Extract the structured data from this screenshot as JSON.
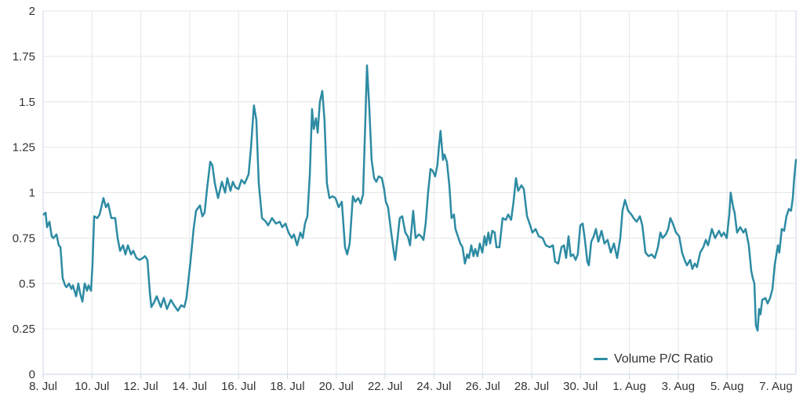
{
  "chart_data": {
    "type": "line",
    "title": "",
    "legend": {
      "label": "Volume P/C Ratio",
      "position": "bottom-right"
    },
    "grid": true,
    "colors": {
      "series": "#2d8ba3",
      "grid": "#e6e6e6",
      "axis": "#ccd6eb",
      "text": "#333333",
      "background": "#ffffff"
    },
    "x_axis": {
      "unit": "days since 8 Jul",
      "range_days": [
        0,
        30.82
      ],
      "tick_days": [
        0,
        2,
        4,
        6,
        8,
        10,
        12,
        14,
        16,
        18,
        20,
        22,
        24,
        26,
        28,
        30
      ],
      "tick_labels": [
        "8. Jul",
        "10. Jul",
        "12. Jul",
        "14. Jul",
        "16. Jul",
        "18. Jul",
        "20. Jul",
        "22. Jul",
        "24. Jul",
        "26. Jul",
        "28. Jul",
        "30. Jul",
        "1. Aug",
        "3. Aug",
        "5. Aug",
        "7. Aug"
      ]
    },
    "y_axis": {
      "range": [
        0,
        2
      ],
      "tick_values": [
        0,
        0.25,
        0.5,
        0.75,
        1,
        1.25,
        1.5,
        1.75,
        2
      ],
      "tick_labels": [
        "0",
        "0.25",
        "0.5",
        "0.75",
        "1",
        "1.25",
        "1.5",
        "1.75",
        "2"
      ]
    },
    "series": [
      {
        "name": "Volume P/C Ratio",
        "color": "#2d8ba3",
        "points": [
          [
            0.03,
            0.88
          ],
          [
            0.1,
            0.89
          ],
          [
            0.16,
            0.81
          ],
          [
            0.26,
            0.84
          ],
          [
            0.35,
            0.76
          ],
          [
            0.42,
            0.75
          ],
          [
            0.55,
            0.77
          ],
          [
            0.64,
            0.71
          ],
          [
            0.71,
            0.7
          ],
          [
            0.8,
            0.53
          ],
          [
            0.9,
            0.49
          ],
          [
            0.96,
            0.48
          ],
          [
            1.06,
            0.5
          ],
          [
            1.16,
            0.47
          ],
          [
            1.22,
            0.49
          ],
          [
            1.35,
            0.43
          ],
          [
            1.44,
            0.5
          ],
          [
            1.51,
            0.45
          ],
          [
            1.61,
            0.4
          ],
          [
            1.7,
            0.5
          ],
          [
            1.8,
            0.46
          ],
          [
            1.86,
            0.49
          ],
          [
            1.96,
            0.46
          ],
          [
            2.02,
            0.6
          ],
          [
            2.09,
            0.87
          ],
          [
            2.22,
            0.86
          ],
          [
            2.31,
            0.88
          ],
          [
            2.47,
            0.97
          ],
          [
            2.57,
            0.92
          ],
          [
            2.66,
            0.94
          ],
          [
            2.79,
            0.86
          ],
          [
            2.95,
            0.86
          ],
          [
            3.05,
            0.75
          ],
          [
            3.15,
            0.68
          ],
          [
            3.27,
            0.71
          ],
          [
            3.37,
            0.66
          ],
          [
            3.47,
            0.71
          ],
          [
            3.6,
            0.66
          ],
          [
            3.69,
            0.68
          ],
          [
            3.82,
            0.64
          ],
          [
            3.95,
            0.63
          ],
          [
            4.08,
            0.64
          ],
          [
            4.17,
            0.65
          ],
          [
            4.27,
            0.63
          ],
          [
            4.37,
            0.45
          ],
          [
            4.43,
            0.37
          ],
          [
            4.56,
            0.4
          ],
          [
            4.65,
            0.43
          ],
          [
            4.82,
            0.37
          ],
          [
            4.94,
            0.42
          ],
          [
            5.07,
            0.36
          ],
          [
            5.23,
            0.41
          ],
          [
            5.36,
            0.38
          ],
          [
            5.52,
            0.35
          ],
          [
            5.65,
            0.38
          ],
          [
            5.78,
            0.37
          ],
          [
            5.87,
            0.42
          ],
          [
            6.04,
            0.63
          ],
          [
            6.16,
            0.8
          ],
          [
            6.26,
            0.9
          ],
          [
            6.42,
            0.93
          ],
          [
            6.52,
            0.87
          ],
          [
            6.61,
            0.89
          ],
          [
            6.71,
            1.02
          ],
          [
            6.84,
            1.17
          ],
          [
            6.93,
            1.15
          ],
          [
            7.03,
            1.05
          ],
          [
            7.16,
            0.97
          ],
          [
            7.32,
            1.06
          ],
          [
            7.45,
            1.0
          ],
          [
            7.54,
            1.08
          ],
          [
            7.67,
            1.01
          ],
          [
            7.77,
            1.06
          ],
          [
            7.87,
            1.03
          ],
          [
            8.0,
            1.02
          ],
          [
            8.12,
            1.07
          ],
          [
            8.25,
            1.05
          ],
          [
            8.41,
            1.1
          ],
          [
            8.51,
            1.25
          ],
          [
            8.63,
            1.48
          ],
          [
            8.73,
            1.4
          ],
          [
            8.83,
            1.05
          ],
          [
            8.96,
            0.86
          ],
          [
            9.12,
            0.84
          ],
          [
            9.21,
            0.82
          ],
          [
            9.37,
            0.86
          ],
          [
            9.53,
            0.83
          ],
          [
            9.69,
            0.84
          ],
          [
            9.79,
            0.81
          ],
          [
            9.92,
            0.83
          ],
          [
            10.05,
            0.78
          ],
          [
            10.18,
            0.75
          ],
          [
            10.27,
            0.77
          ],
          [
            10.4,
            0.71
          ],
          [
            10.53,
            0.78
          ],
          [
            10.63,
            0.75
          ],
          [
            10.72,
            0.83
          ],
          [
            10.82,
            0.87
          ],
          [
            10.92,
            1.1
          ],
          [
            11.01,
            1.46
          ],
          [
            11.08,
            1.35
          ],
          [
            11.17,
            1.41
          ],
          [
            11.24,
            1.33
          ],
          [
            11.33,
            1.5
          ],
          [
            11.43,
            1.56
          ],
          [
            11.52,
            1.4
          ],
          [
            11.62,
            1.05
          ],
          [
            11.72,
            0.97
          ],
          [
            11.85,
            0.98
          ],
          [
            11.97,
            0.97
          ],
          [
            12.1,
            0.92
          ],
          [
            12.23,
            0.95
          ],
          [
            12.36,
            0.7
          ],
          [
            12.45,
            0.66
          ],
          [
            12.55,
            0.72
          ],
          [
            12.68,
            0.98
          ],
          [
            12.78,
            0.95
          ],
          [
            12.9,
            0.97
          ],
          [
            13.0,
            0.94
          ],
          [
            13.1,
            0.99
          ],
          [
            13.19,
            1.4
          ],
          [
            13.26,
            1.7
          ],
          [
            13.35,
            1.48
          ],
          [
            13.45,
            1.18
          ],
          [
            13.55,
            1.08
          ],
          [
            13.64,
            1.06
          ],
          [
            13.74,
            1.09
          ],
          [
            13.87,
            1.08
          ],
          [
            13.96,
            1.02
          ],
          [
            14.03,
            0.95
          ],
          [
            14.12,
            0.92
          ],
          [
            14.25,
            0.78
          ],
          [
            14.35,
            0.68
          ],
          [
            14.41,
            0.63
          ],
          [
            14.51,
            0.75
          ],
          [
            14.6,
            0.86
          ],
          [
            14.7,
            0.87
          ],
          [
            14.83,
            0.78
          ],
          [
            14.93,
            0.76
          ],
          [
            15.02,
            0.71
          ],
          [
            15.15,
            0.9
          ],
          [
            15.25,
            0.75
          ],
          [
            15.38,
            0.77
          ],
          [
            15.47,
            0.76
          ],
          [
            15.57,
            0.74
          ],
          [
            15.66,
            0.83
          ],
          [
            15.76,
            1.0
          ],
          [
            15.86,
            1.13
          ],
          [
            15.95,
            1.12
          ],
          [
            16.05,
            1.09
          ],
          [
            16.14,
            1.15
          ],
          [
            16.21,
            1.26
          ],
          [
            16.27,
            1.34
          ],
          [
            16.37,
            1.18
          ],
          [
            16.43,
            1.21
          ],
          [
            16.53,
            1.17
          ],
          [
            16.63,
            1.04
          ],
          [
            16.72,
            0.86
          ],
          [
            16.82,
            0.88
          ],
          [
            16.88,
            0.8
          ],
          [
            16.98,
            0.76
          ],
          [
            17.08,
            0.72
          ],
          [
            17.17,
            0.7
          ],
          [
            17.27,
            0.61
          ],
          [
            17.36,
            0.66
          ],
          [
            17.43,
            0.64
          ],
          [
            17.53,
            0.71
          ],
          [
            17.62,
            0.65
          ],
          [
            17.69,
            0.69
          ],
          [
            17.78,
            0.65
          ],
          [
            17.88,
            0.72
          ],
          [
            17.98,
            0.67
          ],
          [
            18.07,
            0.76
          ],
          [
            18.14,
            0.71
          ],
          [
            18.23,
            0.78
          ],
          [
            18.3,
            0.72
          ],
          [
            18.39,
            0.79
          ],
          [
            18.49,
            0.78
          ],
          [
            18.56,
            0.7
          ],
          [
            18.68,
            0.7
          ],
          [
            18.81,
            0.86
          ],
          [
            18.94,
            0.85
          ],
          [
            19.04,
            0.88
          ],
          [
            19.16,
            0.85
          ],
          [
            19.26,
            0.95
          ],
          [
            19.36,
            1.08
          ],
          [
            19.45,
            1.01
          ],
          [
            19.58,
            1.04
          ],
          [
            19.68,
            1.02
          ],
          [
            19.81,
            0.87
          ],
          [
            19.94,
            0.82
          ],
          [
            20.03,
            0.78
          ],
          [
            20.16,
            0.8
          ],
          [
            20.29,
            0.76
          ],
          [
            20.45,
            0.75
          ],
          [
            20.58,
            0.71
          ],
          [
            20.74,
            0.7
          ],
          [
            20.87,
            0.71
          ],
          [
            20.96,
            0.62
          ],
          [
            21.09,
            0.61
          ],
          [
            21.22,
            0.7
          ],
          [
            21.32,
            0.71
          ],
          [
            21.41,
            0.64
          ],
          [
            21.51,
            0.76
          ],
          [
            21.6,
            0.65
          ],
          [
            21.7,
            0.66
          ],
          [
            21.8,
            0.63
          ],
          [
            21.89,
            0.66
          ],
          [
            21.99,
            0.82
          ],
          [
            22.09,
            0.83
          ],
          [
            22.18,
            0.74
          ],
          [
            22.28,
            0.62
          ],
          [
            22.34,
            0.6
          ],
          [
            22.44,
            0.73
          ],
          [
            22.54,
            0.76
          ],
          [
            22.63,
            0.8
          ],
          [
            22.73,
            0.73
          ],
          [
            22.86,
            0.79
          ],
          [
            22.98,
            0.72
          ],
          [
            23.11,
            0.74
          ],
          [
            23.24,
            0.67
          ],
          [
            23.37,
            0.72
          ],
          [
            23.5,
            0.64
          ],
          [
            23.63,
            0.75
          ],
          [
            23.72,
            0.9
          ],
          [
            23.82,
            0.96
          ],
          [
            23.95,
            0.9
          ],
          [
            24.08,
            0.88
          ],
          [
            24.17,
            0.86
          ],
          [
            24.3,
            0.84
          ],
          [
            24.43,
            0.87
          ],
          [
            24.53,
            0.82
          ],
          [
            24.66,
            0.67
          ],
          [
            24.79,
            0.65
          ],
          [
            24.91,
            0.66
          ],
          [
            25.04,
            0.64
          ],
          [
            25.17,
            0.7
          ],
          [
            25.27,
            0.78
          ],
          [
            25.36,
            0.75
          ],
          [
            25.49,
            0.77
          ],
          [
            25.59,
            0.8
          ],
          [
            25.68,
            0.86
          ],
          [
            25.78,
            0.83
          ],
          [
            25.91,
            0.78
          ],
          [
            26.04,
            0.76
          ],
          [
            26.16,
            0.67
          ],
          [
            26.26,
            0.63
          ],
          [
            26.36,
            0.6
          ],
          [
            26.49,
            0.63
          ],
          [
            26.58,
            0.58
          ],
          [
            26.68,
            0.61
          ],
          [
            26.77,
            0.59
          ],
          [
            26.9,
            0.67
          ],
          [
            27.03,
            0.7
          ],
          [
            27.13,
            0.74
          ],
          [
            27.22,
            0.71
          ],
          [
            27.38,
            0.8
          ],
          [
            27.51,
            0.75
          ],
          [
            27.67,
            0.79
          ],
          [
            27.77,
            0.76
          ],
          [
            27.87,
            0.78
          ],
          [
            27.99,
            0.75
          ],
          [
            28.09,
            0.88
          ],
          [
            28.15,
            1.0
          ],
          [
            28.25,
            0.92
          ],
          [
            28.31,
            0.89
          ],
          [
            28.41,
            0.78
          ],
          [
            28.54,
            0.81
          ],
          [
            28.67,
            0.78
          ],
          [
            28.76,
            0.8
          ],
          [
            28.89,
            0.71
          ],
          [
            28.99,
            0.57
          ],
          [
            29.05,
            0.53
          ],
          [
            29.12,
            0.5
          ],
          [
            29.15,
            0.38
          ],
          [
            29.18,
            0.27
          ],
          [
            29.25,
            0.24
          ],
          [
            29.31,
            0.36
          ],
          [
            29.37,
            0.33
          ],
          [
            29.44,
            0.41
          ],
          [
            29.57,
            0.42
          ],
          [
            29.66,
            0.39
          ],
          [
            29.76,
            0.42
          ],
          [
            29.86,
            0.47
          ],
          [
            29.95,
            0.6
          ],
          [
            30.02,
            0.66
          ],
          [
            30.08,
            0.71
          ],
          [
            30.14,
            0.67
          ],
          [
            30.24,
            0.8
          ],
          [
            30.34,
            0.79
          ],
          [
            30.43,
            0.87
          ],
          [
            30.53,
            0.91
          ],
          [
            30.62,
            0.9
          ],
          [
            30.69,
            0.97
          ],
          [
            30.75,
            1.08
          ],
          [
            30.82,
            1.18
          ]
        ]
      }
    ]
  }
}
